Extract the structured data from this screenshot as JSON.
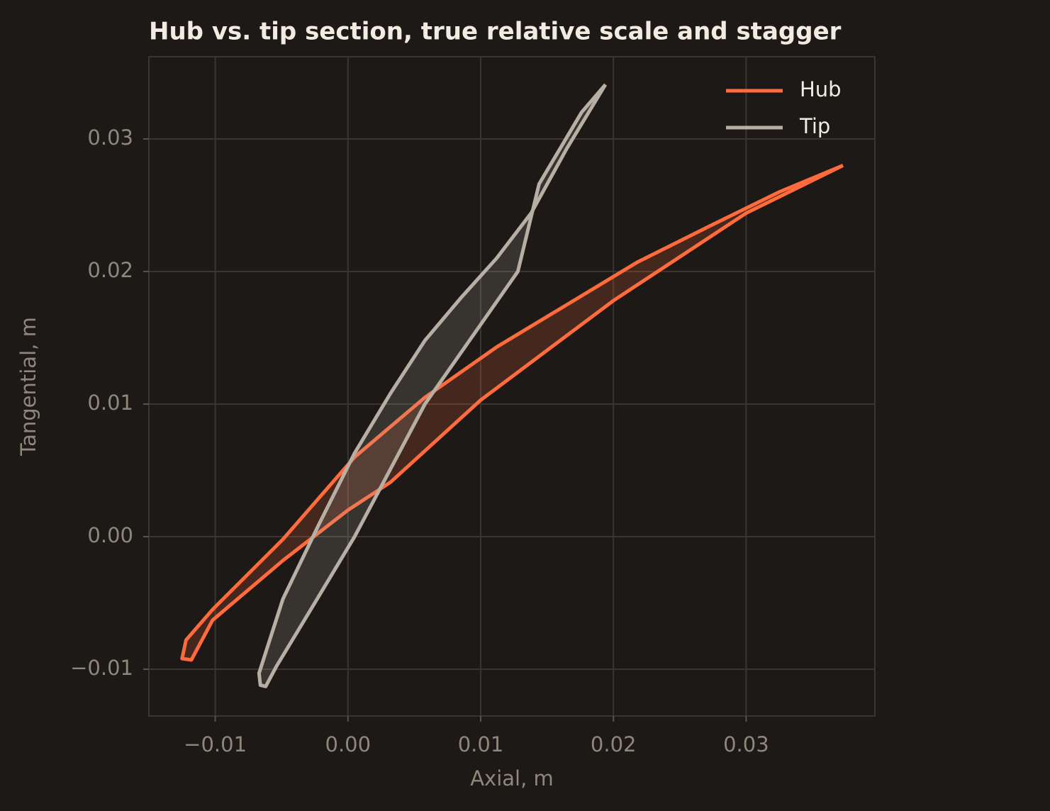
{
  "chart_data": {
    "type": "line",
    "title": "Hub vs. tip section, true relative scale and stagger",
    "x_label": "Axial, m",
    "y_label": "Tangential, m",
    "xlim": [
      -0.015,
      0.0397
    ],
    "ylim": [
      -0.01353,
      0.0362
    ],
    "xticks": [
      {
        "value": -0.01,
        "label": "−0.01"
      },
      {
        "value": 0,
        "label": "0.00"
      },
      0.01,
      0.02,
      0.03
    ],
    "yticks": [
      {
        "value": -0.01,
        "label": "−0.01"
      },
      {
        "value": 0,
        "label": "0.00"
      },
      0.01,
      0.02,
      0.03
    ],
    "grid": true,
    "legend": "upper right",
    "series": [
      {
        "name": "Hub",
        "color": "#ff6b3d",
        "x": [
          0.0373,
          0.0325,
          0.0272,
          0.0218,
          0.0165,
          0.0112,
          0.0058,
          0.0005,
          -0.0049,
          -0.0102,
          -0.0122,
          -0.0125,
          -0.0118,
          -0.0102,
          -0.0049,
          0,
          0.0032,
          0.01,
          0.02,
          0.03,
          0.0373
        ],
        "values": [
          0.028,
          0.026,
          0.0234,
          0.0207,
          0.0175,
          0.0143,
          0.0105,
          0.006,
          -0.0002,
          -0.0055,
          -0.0078,
          -0.0092,
          -0.0093,
          -0.0063,
          -0.0018,
          0.002,
          0.0041,
          0.0103,
          0.0178,
          0.0244,
          0.028
        ]
      },
      {
        "name": "Tip",
        "color": "#b8afa4",
        "x": [
          0.0194,
          0.0165,
          0.0138,
          0.0112,
          0.0085,
          0.0058,
          0.0032,
          0.0005,
          -0.0022,
          -0.0049,
          -0.0067,
          -0.0066,
          -0.0062,
          -0.0054,
          -0.0025,
          0.0005,
          0.0058,
          0.0128,
          0.0144,
          0.0176,
          0.0194
        ],
        "values": [
          0.0341,
          0.0293,
          0.0244,
          0.021,
          0.018,
          0.0148,
          0.0108,
          0.0063,
          0.0009,
          -0.0047,
          -0.0103,
          -0.0112,
          -0.0113,
          -0.0098,
          -0.005,
          0,
          0.01,
          0.02,
          0.0266,
          0.032,
          0.0341
        ]
      }
    ]
  }
}
